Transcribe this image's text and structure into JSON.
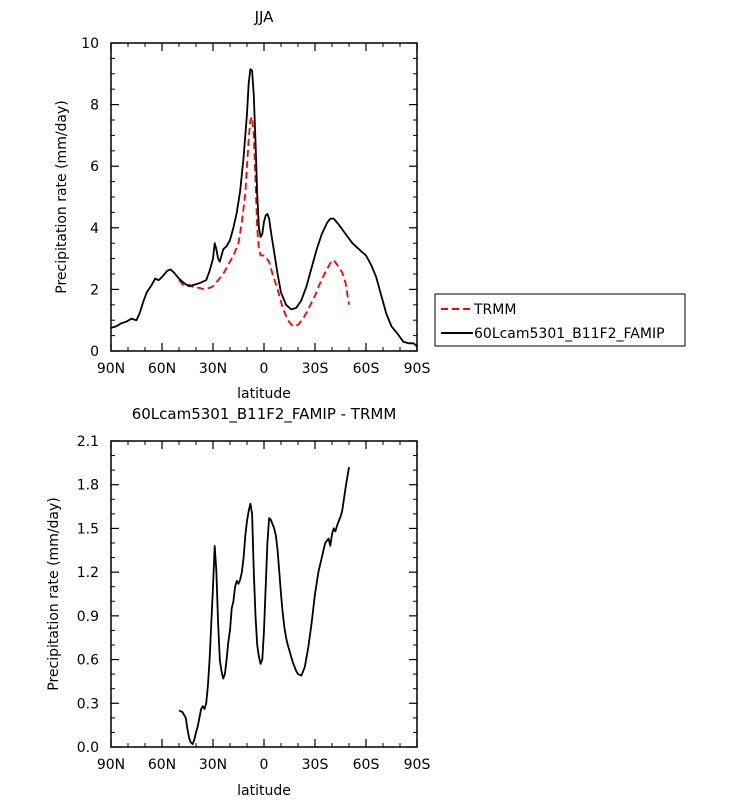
{
  "chart_data": [
    {
      "type": "line",
      "title": "JJA",
      "xlabel": "latitude",
      "ylabel": "Precipitation rate (mm/day)",
      "xlim": [
        90,
        -90
      ],
      "ylim": [
        0,
        10
      ],
      "x_ticks": [
        {
          "value": 90,
          "label": "90N"
        },
        {
          "value": 60,
          "label": "60N"
        },
        {
          "value": 30,
          "label": "30N"
        },
        {
          "value": 0,
          "label": "0"
        },
        {
          "value": -30,
          "label": "30S"
        },
        {
          "value": -60,
          "label": "60S"
        },
        {
          "value": -90,
          "label": "90S"
        }
      ],
      "y_ticks": [
        {
          "value": 0,
          "label": "0"
        },
        {
          "value": 2,
          "label": "2"
        },
        {
          "value": 4,
          "label": "4"
        },
        {
          "value": 6,
          "label": "6"
        },
        {
          "value": 8,
          "label": "8"
        },
        {
          "value": 10,
          "label": "10"
        }
      ],
      "legend_position": "right",
      "series": [
        {
          "name": "TRMM",
          "color": "#ff0000",
          "dashed": true,
          "points": [
            [
              50,
              2.3
            ],
            [
              47,
              2.1
            ],
            [
              44,
              2.15
            ],
            [
              41,
              2.05
            ],
            [
              38,
              2.05
            ],
            [
              35,
              2.0
            ],
            [
              32,
              2.05
            ],
            [
              30,
              2.1
            ],
            [
              27,
              2.3
            ],
            [
              24,
              2.5
            ],
            [
              21,
              2.8
            ],
            [
              18,
              3.1
            ],
            [
              15,
              3.5
            ],
            [
              13,
              4.2
            ],
            [
              11,
              5.1
            ],
            [
              10,
              6.0
            ],
            [
              9,
              6.9
            ],
            [
              8,
              7.5
            ],
            [
              7,
              7.6
            ],
            [
              6,
              7.0
            ],
            [
              5,
              5.5
            ],
            [
              4,
              4.0
            ],
            [
              3,
              3.3
            ],
            [
              2,
              3.1
            ],
            [
              0,
              3.1
            ],
            [
              -3,
              2.9
            ],
            [
              -5,
              2.5
            ],
            [
              -8,
              2.0
            ],
            [
              -11,
              1.4
            ],
            [
              -14,
              1.0
            ],
            [
              -17,
              0.8
            ],
            [
              -20,
              0.85
            ],
            [
              -23,
              1.05
            ],
            [
              -26,
              1.35
            ],
            [
              -30,
              1.8
            ],
            [
              -33,
              2.2
            ],
            [
              -36,
              2.55
            ],
            [
              -39,
              2.85
            ],
            [
              -41,
              2.95
            ],
            [
              -43,
              2.8
            ],
            [
              -46,
              2.55
            ],
            [
              -48,
              2.2
            ],
            [
              -50,
              1.5
            ]
          ]
        },
        {
          "name": "60Lcam5301_B11F2_FAMIP",
          "color": "#000000",
          "dashed": false,
          "points": [
            [
              90,
              0.75
            ],
            [
              87,
              0.8
            ],
            [
              84,
              0.9
            ],
            [
              81,
              0.95
            ],
            [
              78,
              1.05
            ],
            [
              75,
              1.0
            ],
            [
              73,
              1.25
            ],
            [
              71,
              1.6
            ],
            [
              69,
              1.9
            ],
            [
              66,
              2.15
            ],
            [
              64,
              2.35
            ],
            [
              62,
              2.3
            ],
            [
              60,
              2.4
            ],
            [
              57,
              2.6
            ],
            [
              55,
              2.65
            ],
            [
              53,
              2.55
            ],
            [
              50,
              2.35
            ],
            [
              47,
              2.2
            ],
            [
              44,
              2.1
            ],
            [
              41,
              2.15
            ],
            [
              38,
              2.2
            ],
            [
              36,
              2.25
            ],
            [
              34,
              2.3
            ],
            [
              32,
              2.6
            ],
            [
              30,
              3.0
            ],
            [
              29,
              3.5
            ],
            [
              28,
              3.3
            ],
            [
              27,
              3.0
            ],
            [
              26,
              2.9
            ],
            [
              24,
              3.3
            ],
            [
              22,
              3.4
            ],
            [
              20,
              3.6
            ],
            [
              18,
              4.0
            ],
            [
              16,
              4.5
            ],
            [
              14,
              5.2
            ],
            [
              12,
              6.3
            ],
            [
              10,
              7.7
            ],
            [
              9,
              8.7
            ],
            [
              8,
              9.15
            ],
            [
              7,
              9.1
            ],
            [
              6,
              8.3
            ],
            [
              5,
              6.8
            ],
            [
              4,
              5.1
            ],
            [
              3,
              4.0
            ],
            [
              2,
              3.7
            ],
            [
              1,
              3.8
            ],
            [
              0,
              4.2
            ],
            [
              -1,
              4.4
            ],
            [
              -2,
              4.45
            ],
            [
              -3,
              4.3
            ],
            [
              -4,
              3.9
            ],
            [
              -6,
              3.2
            ],
            [
              -8,
              2.5
            ],
            [
              -10,
              1.9
            ],
            [
              -13,
              1.5
            ],
            [
              -16,
              1.35
            ],
            [
              -19,
              1.4
            ],
            [
              -22,
              1.65
            ],
            [
              -25,
              2.1
            ],
            [
              -28,
              2.7
            ],
            [
              -31,
              3.3
            ],
            [
              -34,
              3.8
            ],
            [
              -37,
              4.15
            ],
            [
              -39,
              4.3
            ],
            [
              -41,
              4.3
            ],
            [
              -44,
              4.1
            ],
            [
              -48,
              3.8
            ],
            [
              -52,
              3.5
            ],
            [
              -56,
              3.3
            ],
            [
              -60,
              3.1
            ],
            [
              -63,
              2.8
            ],
            [
              -66,
              2.4
            ],
            [
              -69,
              1.8
            ],
            [
              -72,
              1.2
            ],
            [
              -75,
              0.8
            ],
            [
              -78,
              0.6
            ],
            [
              -80,
              0.45
            ],
            [
              -82,
              0.3
            ],
            [
              -85,
              0.25
            ],
            [
              -88,
              0.25
            ],
            [
              -90,
              0.15
            ]
          ]
        }
      ]
    },
    {
      "type": "line",
      "title": "60Lcam5301_B11F2_FAMIP - TRMM",
      "xlabel": "latitude",
      "ylabel": "Precipitation rate (mm/day)",
      "xlim": [
        90,
        -90
      ],
      "ylim": [
        0,
        2.1
      ],
      "x_ticks": [
        {
          "value": 90,
          "label": "90N"
        },
        {
          "value": 60,
          "label": "60N"
        },
        {
          "value": 30,
          "label": "30N"
        },
        {
          "value": 0,
          "label": "0"
        },
        {
          "value": -30,
          "label": "30S"
        },
        {
          "value": -60,
          "label": "60S"
        },
        {
          "value": -90,
          "label": "90S"
        }
      ],
      "y_ticks": [
        {
          "value": 0,
          "label": "0.0"
        },
        {
          "value": 0.3,
          "label": "0.3"
        },
        {
          "value": 0.6,
          "label": "0.6"
        },
        {
          "value": 0.9,
          "label": "0.9"
        },
        {
          "value": 1.2,
          "label": "1.2"
        },
        {
          "value": 1.5,
          "label": "1.5"
        },
        {
          "value": 1.8,
          "label": "1.8"
        },
        {
          "value": 2.1,
          "label": "2.1"
        }
      ],
      "series": [
        {
          "color": "#000000",
          "dashed": false,
          "points": [
            [
              50,
              0.25
            ],
            [
              48,
              0.24
            ],
            [
              46,
              0.2
            ],
            [
              45,
              0.12
            ],
            [
              44,
              0.06
            ],
            [
              43,
              0.03
            ],
            [
              42,
              0.02
            ],
            [
              41,
              0.05
            ],
            [
              40,
              0.1
            ],
            [
              39,
              0.14
            ],
            [
              38,
              0.2
            ],
            [
              37,
              0.26
            ],
            [
              36,
              0.28
            ],
            [
              35,
              0.26
            ],
            [
              34,
              0.3
            ],
            [
              33,
              0.42
            ],
            [
              32,
              0.6
            ],
            [
              31,
              0.85
            ],
            [
              30,
              1.1
            ],
            [
              29,
              1.38
            ],
            [
              28,
              1.2
            ],
            [
              27,
              0.85
            ],
            [
              26,
              0.6
            ],
            [
              25,
              0.52
            ],
            [
              24,
              0.47
            ],
            [
              23,
              0.5
            ],
            [
              22,
              0.6
            ],
            [
              21,
              0.72
            ],
            [
              20,
              0.8
            ],
            [
              19,
              0.95
            ],
            [
              18,
              1.0
            ],
            [
              17,
              1.1
            ],
            [
              16,
              1.14
            ],
            [
              15,
              1.12
            ],
            [
              14,
              1.15
            ],
            [
              13,
              1.2
            ],
            [
              12,
              1.3
            ],
            [
              11,
              1.45
            ],
            [
              10,
              1.55
            ],
            [
              9,
              1.62
            ],
            [
              8,
              1.67
            ],
            [
              7,
              1.6
            ],
            [
              6,
              1.2
            ],
            [
              5,
              0.9
            ],
            [
              4,
              0.7
            ],
            [
              3,
              0.62
            ],
            [
              2,
              0.57
            ],
            [
              1,
              0.6
            ],
            [
              0,
              0.8
            ],
            [
              -1,
              1.1
            ],
            [
              -2,
              1.4
            ],
            [
              -3,
              1.57
            ],
            [
              -4,
              1.56
            ],
            [
              -5,
              1.53
            ],
            [
              -6,
              1.5
            ],
            [
              -7,
              1.45
            ],
            [
              -8,
              1.35
            ],
            [
              -9,
              1.2
            ],
            [
              -10,
              1.05
            ],
            [
              -11,
              0.92
            ],
            [
              -12,
              0.82
            ],
            [
              -13,
              0.75
            ],
            [
              -14,
              0.7
            ],
            [
              -15,
              0.66
            ],
            [
              -16,
              0.62
            ],
            [
              -17,
              0.58
            ],
            [
              -18,
              0.55
            ],
            [
              -19,
              0.52
            ],
            [
              -20,
              0.5
            ],
            [
              -22,
              0.49
            ],
            [
              -24,
              0.55
            ],
            [
              -26,
              0.68
            ],
            [
              -28,
              0.85
            ],
            [
              -30,
              1.05
            ],
            [
              -32,
              1.2
            ],
            [
              -34,
              1.3
            ],
            [
              -36,
              1.4
            ],
            [
              -38,
              1.43
            ],
            [
              -39,
              1.38
            ],
            [
              -40,
              1.46
            ],
            [
              -41,
              1.5
            ],
            [
              -42,
              1.48
            ],
            [
              -43,
              1.52
            ],
            [
              -44,
              1.55
            ],
            [
              -45,
              1.58
            ],
            [
              -46,
              1.62
            ],
            [
              -47,
              1.7
            ],
            [
              -48,
              1.78
            ],
            [
              -49,
              1.85
            ],
            [
              -50,
              1.92
            ]
          ]
        }
      ]
    }
  ]
}
